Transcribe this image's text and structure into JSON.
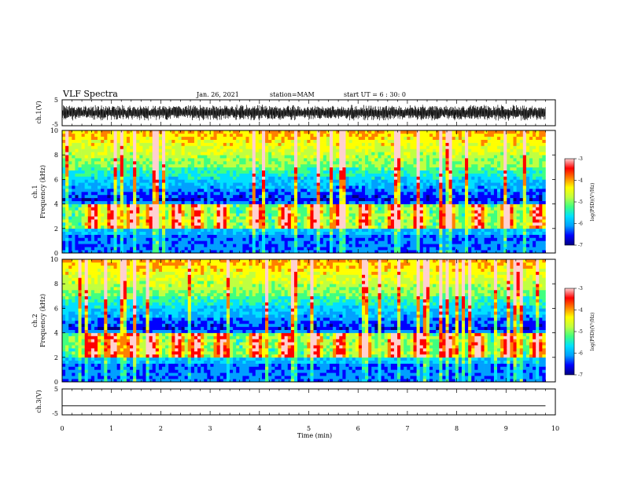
{
  "header": {
    "title": "VLF Spectra",
    "date": "Jan. 26, 2021",
    "station": "station=MAM",
    "start_ut": "start UT =  6 : 30: 0"
  },
  "colors": {
    "spectrogram_colormap": [
      "#000080",
      "#0000ff",
      "#00a0ff",
      "#00e0ff",
      "#40ff80",
      "#c0ff40",
      "#ffff00",
      "#ff8000",
      "#ff0000",
      "#ffd0d0"
    ],
    "frame": "#000000",
    "waveform": "#000000"
  },
  "chart_data": [
    {
      "type": "line",
      "name": "ch1-waveform",
      "ylabel": "ch.1(V)",
      "ylim": [
        -5,
        5
      ],
      "yticks": [
        "5",
        "-5"
      ],
      "description_of_signal": "dense oscillating waveform spanning roughly -3 to 3 V over 0–9.8 min"
    },
    {
      "type": "heatmap",
      "name": "ch1-spectrogram",
      "ylabel_top": "ch.1",
      "ylabel": "Frequency (kHz)",
      "ylim": [
        0,
        10
      ],
      "yticks": [
        "0",
        "2",
        "4",
        "6",
        "8",
        "10"
      ],
      "xlim": [
        0,
        10
      ],
      "data_end_min": 9.8,
      "colorbar": {
        "label": "log(PSD)(V²/Hz)",
        "range": [
          -7,
          -3
        ],
        "ticks": [
          "-3",
          "-4",
          "-5",
          "-6",
          "-7"
        ]
      },
      "features": {
        "emission_band_khz": [
          2,
          4
        ],
        "emission_bursts_center_min": [
          0.6,
          1.0,
          1.4,
          1.8,
          2.3,
          2.7,
          3.2,
          3.9,
          4.5,
          5.1,
          5.6,
          6.1,
          6.7,
          7.2,
          7.8,
          8.4,
          9.0,
          9.6
        ]
      }
    },
    {
      "type": "heatmap",
      "name": "ch2-spectrogram",
      "ylabel_top": "ch.2",
      "ylabel": "Frequency (kHz)",
      "ylim": [
        0,
        10
      ],
      "yticks": [
        "0",
        "2",
        "4",
        "6",
        "8",
        "10"
      ],
      "xlim": [
        0,
        10
      ],
      "data_end_min": 9.8,
      "colorbar": {
        "label": "log(PSD)(V²/Hz)",
        "range": [
          -7,
          -3
        ],
        "ticks": [
          "-3",
          "-4",
          "-5",
          "-6",
          "-7"
        ]
      },
      "features": {
        "emission_band_khz": [
          2,
          4
        ],
        "emission_bursts_center_min": [
          0.6,
          1.0,
          1.4,
          1.8,
          2.3,
          2.7,
          3.2,
          3.9,
          4.5,
          5.1,
          5.6,
          6.1,
          6.7,
          7.2,
          7.8,
          8.4,
          9.0,
          9.6
        ]
      }
    },
    {
      "type": "line",
      "name": "ch3-trace",
      "ylabel": "ch.3(V)",
      "ylim": [
        -5,
        5
      ],
      "yticks": [
        "5",
        "-5"
      ],
      "x": [
        0,
        9.8
      ],
      "y": [
        -1.5,
        -1.5
      ]
    }
  ],
  "xaxis": {
    "label": "Time (min)",
    "ticks": [
      "0",
      "1",
      "2",
      "3",
      "4",
      "5",
      "6",
      "7",
      "8",
      "9",
      "10"
    ]
  }
}
